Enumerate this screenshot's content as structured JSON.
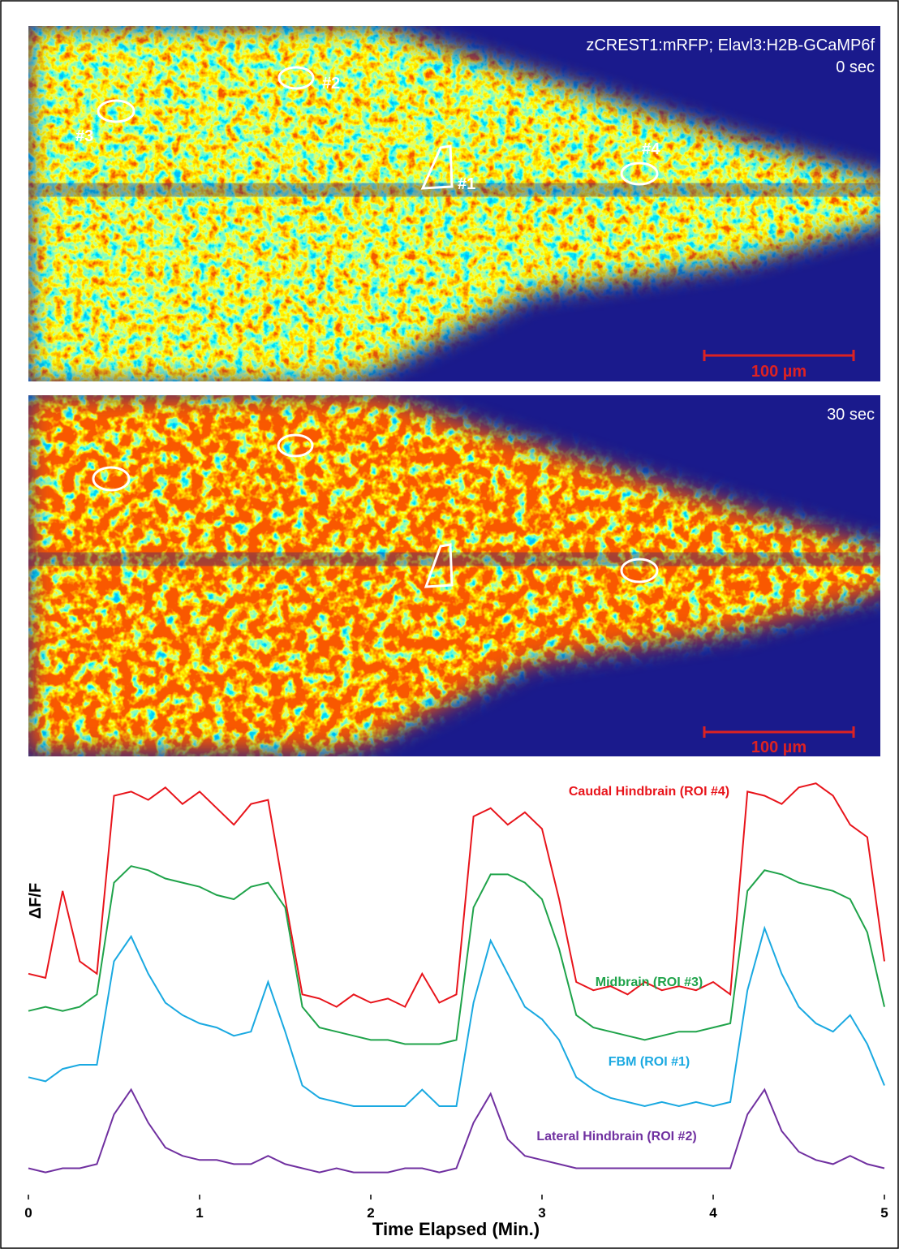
{
  "images": [
    {
      "caption": "zCREST1:mRFP; Elavl3:H2B-GCaMP6f",
      "time": "0 sec",
      "roi_labels": [
        "#1",
        "#2",
        "#3",
        "#4"
      ],
      "scale_bar": "100 µm"
    },
    {
      "time": "30 sec",
      "scale_bar": "100 µm"
    }
  ],
  "chart_data": {
    "type": "line",
    "y_label": "ΔF/F",
    "x_label": "Time Elapsed (Min.)",
    "xlim": [
      0,
      5
    ],
    "xticks": [
      0,
      1,
      2,
      3,
      4,
      5
    ],
    "ylim": [
      0,
      100
    ],
    "x": [
      0,
      0.1,
      0.2,
      0.3,
      0.4,
      0.5,
      0.6,
      0.7,
      0.8,
      0.9,
      1,
      1.1,
      1.2,
      1.3,
      1.4,
      1.5,
      1.6,
      1.7,
      1.8,
      1.9,
      2,
      2.1,
      2.2,
      2.3,
      2.4,
      2.5,
      2.6,
      2.7,
      2.8,
      2.9,
      3,
      3.1,
      3.2,
      3.3,
      3.4,
      3.5,
      3.6,
      3.7,
      3.8,
      3.9,
      4,
      4.1,
      4.2,
      4.3,
      4.4,
      4.5,
      4.6,
      4.7,
      4.8,
      4.9,
      5
    ],
    "series": [
      {
        "name": "Caudal Hindbrain (ROI #4)",
        "color": "#e8141b",
        "values": [
          52,
          51,
          72,
          55,
          52,
          95,
          96,
          94,
          97,
          93,
          96,
          92,
          88,
          93,
          94,
          70,
          47,
          46,
          44,
          47,
          45,
          46,
          44,
          52,
          45,
          47,
          90,
          92,
          88,
          91,
          87,
          70,
          50,
          48,
          49,
          47,
          50,
          48,
          49,
          48,
          50,
          47,
          96,
          95,
          93,
          97,
          98,
          95,
          88,
          85,
          55
        ]
      },
      {
        "name": "Midbrain (ROI #3)",
        "color": "#1fa34a",
        "values": [
          43,
          44,
          43,
          44,
          47,
          74,
          78,
          77,
          75,
          74,
          73,
          71,
          70,
          73,
          74,
          68,
          44,
          39,
          38,
          37,
          36,
          36,
          35,
          35,
          35,
          36,
          68,
          76,
          76,
          74,
          70,
          58,
          42,
          39,
          38,
          37,
          36,
          37,
          38,
          38,
          39,
          40,
          72,
          77,
          76,
          74,
          73,
          72,
          70,
          62,
          44
        ]
      },
      {
        "name": "FBM (ROI #1)",
        "color": "#1aa9e1",
        "values": [
          27,
          26,
          29,
          30,
          30,
          55,
          61,
          52,
          45,
          42,
          40,
          39,
          37,
          38,
          50,
          38,
          25,
          22,
          21,
          20,
          20,
          20,
          20,
          24,
          20,
          20,
          45,
          60,
          52,
          44,
          41,
          36,
          27,
          24,
          22,
          21,
          20,
          21,
          20,
          21,
          20,
          21,
          48,
          63,
          52,
          44,
          40,
          38,
          42,
          35,
          25
        ]
      },
      {
        "name": "Lateral Hindbrain (ROI #2)",
        "color": "#7030a0",
        "values": [
          5,
          4,
          5,
          5,
          6,
          18,
          24,
          16,
          10,
          8,
          7,
          7,
          6,
          6,
          8,
          6,
          5,
          4,
          5,
          4,
          4,
          4,
          5,
          5,
          4,
          5,
          16,
          23,
          12,
          8,
          7,
          6,
          5,
          5,
          5,
          5,
          5,
          5,
          5,
          5,
          5,
          5,
          18,
          24,
          14,
          9,
          7,
          6,
          8,
          6,
          5
        ]
      }
    ]
  }
}
